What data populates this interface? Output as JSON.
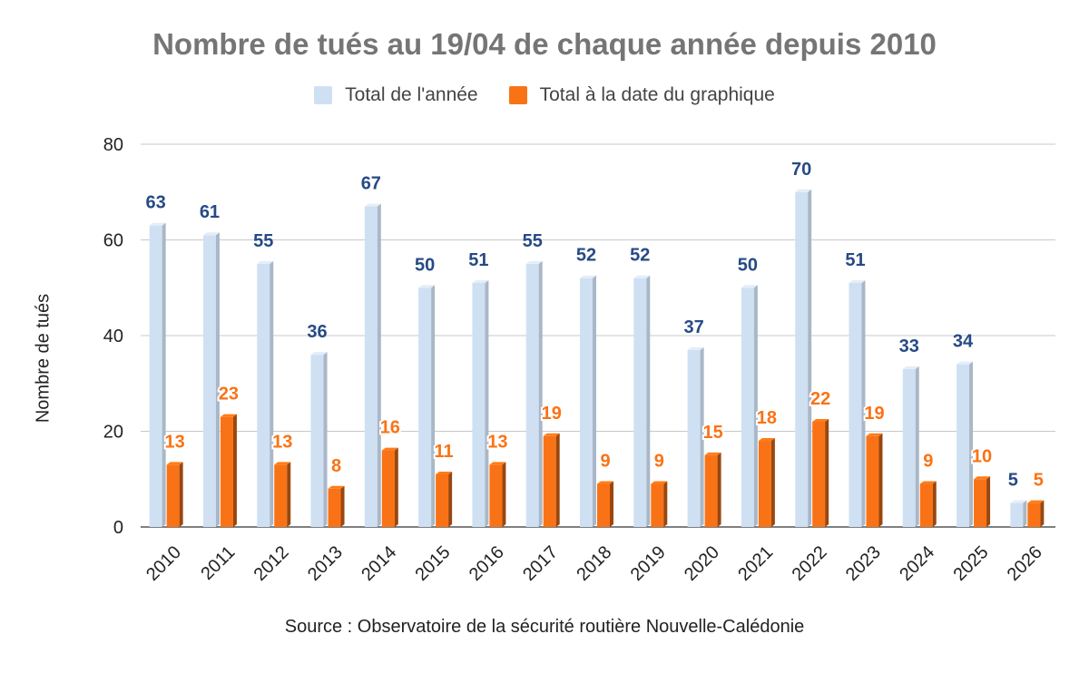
{
  "chart_data": {
    "type": "bar",
    "title": "Nombre de tués au 19/04 de chaque année depuis 2010",
    "ylabel": "Nombre de tués",
    "xlabel": "",
    "source": "Source : Observatoire de la sécurité routière Nouvelle-Calédonie",
    "categories": [
      "2010",
      "2011",
      "2012",
      "2013",
      "2014",
      "2015",
      "2016",
      "2017",
      "2018",
      "2019",
      "2020",
      "2021",
      "2022",
      "2023",
      "2024",
      "2025",
      "2026"
    ],
    "series": [
      {
        "name": "Total de l'année",
        "color": "#cfe0f3",
        "label_color": "#264a86",
        "values": [
          63,
          61,
          55,
          36,
          67,
          50,
          51,
          55,
          52,
          52,
          37,
          50,
          70,
          51,
          33,
          34,
          5
        ]
      },
      {
        "name": "Total à la date du graphique",
        "color": "#f97316",
        "label_color": "#f97316",
        "values": [
          13,
          23,
          13,
          8,
          16,
          11,
          13,
          19,
          9,
          9,
          15,
          18,
          22,
          19,
          9,
          10,
          5
        ]
      }
    ],
    "ylim": [
      0,
      80
    ],
    "yticks": [
      0,
      20,
      40,
      60,
      80
    ],
    "grid": true,
    "legend_position": "top-center",
    "data_labels": true,
    "style": "3d-columns"
  }
}
